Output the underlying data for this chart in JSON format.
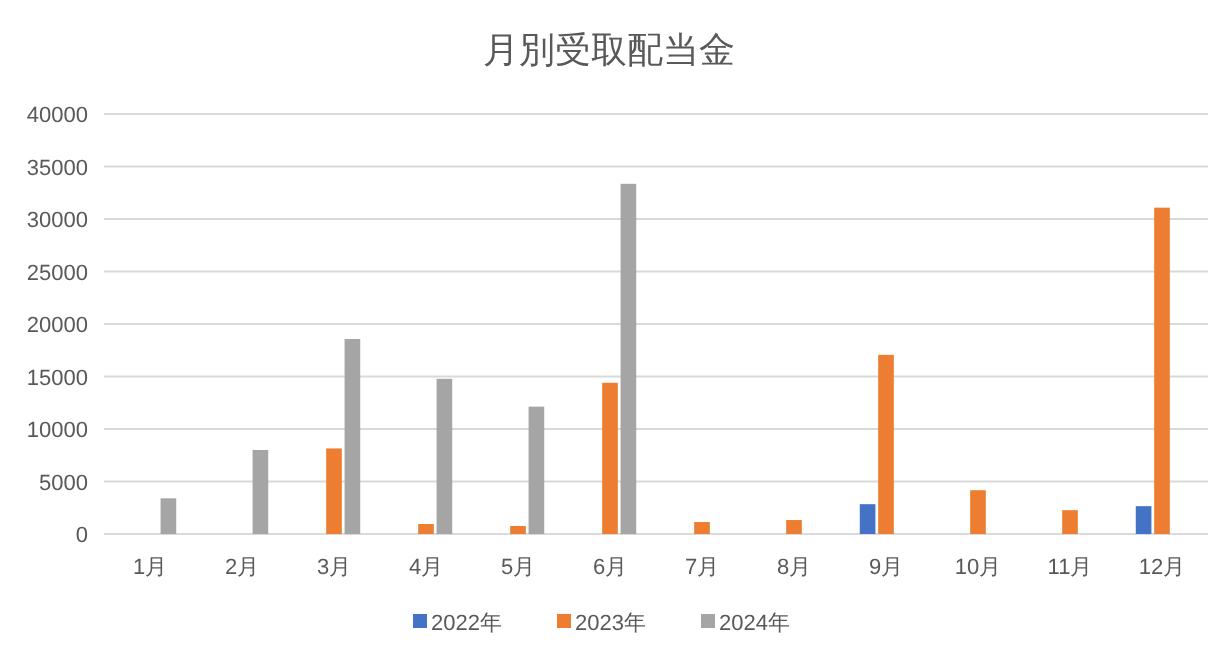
{
  "chart_data": {
    "type": "bar",
    "title": "月別受取配当金",
    "categories": [
      "1月",
      "2月",
      "3月",
      "4月",
      "5月",
      "6月",
      "7月",
      "8月",
      "9月",
      "10月",
      "11月",
      "12月"
    ],
    "series": [
      {
        "name": "2022年",
        "color": "#4472c4",
        "values": [
          null,
          null,
          null,
          null,
          null,
          null,
          null,
          null,
          2840,
          null,
          null,
          2650
        ]
      },
      {
        "name": "2023年",
        "color": "#ed7d31",
        "values": [
          null,
          null,
          8150,
          950,
          760,
          14400,
          1140,
          1330,
          17060,
          4170,
          2270,
          31080
        ]
      },
      {
        "name": "2024年",
        "color": "#a5a5a5",
        "values": [
          3400,
          8000,
          18570,
          14780,
          12130,
          33350,
          null,
          null,
          null,
          null,
          null,
          null
        ]
      }
    ],
    "ylim": [
      0,
      40000
    ],
    "yticks": [
      0,
      5000,
      10000,
      15000,
      20000,
      25000,
      30000,
      35000,
      40000
    ],
    "grid": "y",
    "legend": "bottom"
  }
}
